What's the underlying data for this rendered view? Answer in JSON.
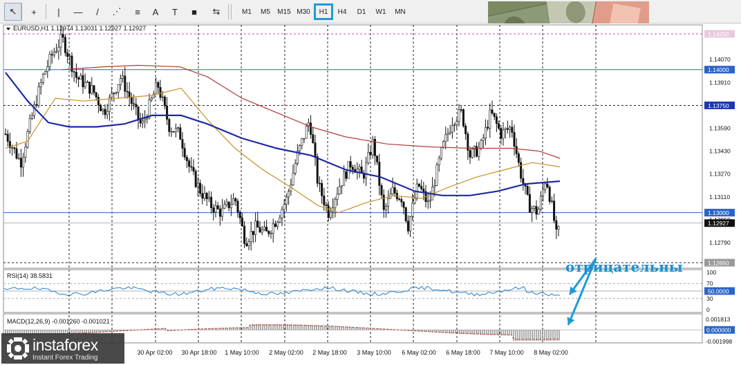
{
  "toolbar": {
    "tools": [
      {
        "name": "cursor-icon",
        "glyph": "↖"
      },
      {
        "name": "crosshair-icon",
        "glyph": "+"
      },
      {
        "name": "vertical-line-icon",
        "glyph": "|"
      },
      {
        "name": "horizontal-line-icon",
        "glyph": "—"
      },
      {
        "name": "trendline-icon",
        "glyph": "/"
      },
      {
        "name": "andrews-pitchfork-icon",
        "glyph": "⋰"
      },
      {
        "name": "fibonacci-icon",
        "glyph": "≡"
      },
      {
        "name": "text-icon",
        "glyph": "A"
      },
      {
        "name": "text-label-icon",
        "glyph": "T"
      },
      {
        "name": "rectangle-icon",
        "glyph": "■"
      },
      {
        "name": "arrows-icon",
        "glyph": "⇆"
      }
    ],
    "timeframes": [
      "M1",
      "M5",
      "M15",
      "M30",
      "H1",
      "H4",
      "D1",
      "W1",
      "MN"
    ],
    "selected_timeframe": "H1"
  },
  "chart_header": "EURUSD,H1  1.12974 1.13031 1.12927 1.12927",
  "price_axis": {
    "ticks": [
      "1.14250",
      "1.14070",
      "1.13910",
      "1.13750",
      "1.13590",
      "1.13430",
      "1.13270",
      "1.13110",
      "1.12950",
      "1.12790",
      "1.12650"
    ],
    "level_labels": [
      {
        "text": "1.14250",
        "style": "dashed-pink"
      },
      {
        "text": "1.14000",
        "style": "blue"
      },
      {
        "text": "1.13750",
        "style": "dark-blue"
      },
      {
        "text": "1.13000",
        "style": "blue"
      },
      {
        "text": "1.12927",
        "style": "black"
      },
      {
        "text": "1.12650",
        "style": "gray"
      }
    ]
  },
  "rsi": {
    "label": "RSI(14) 38.5831",
    "ticks": [
      "100",
      "70",
      "50.0000",
      "30",
      "0"
    ]
  },
  "macd": {
    "label": "MACD(12,26,9) -0.001260 -0.001021",
    "ticks": [
      "0.001813",
      "0.000000",
      "-0.001998"
    ]
  },
  "time_axis": [
    "30 Apr 02:00",
    "30 Apr 18:00",
    "1 May 10:00",
    "2 May 02:00",
    "2 May 18:00",
    "3 May 10:00",
    "6 May 02:00",
    "6 May 18:00",
    "7 May 10:00",
    "8 May 02:00"
  ],
  "annotation": "отрицательны",
  "logo": {
    "name": "instaforex",
    "tagline": "Instant Forex Trading"
  },
  "colors": {
    "accent": "#1e9ad8",
    "ma_fast": "#c8902a",
    "ma_slow": "#1c2aa0",
    "ma_long": "#b03a3a",
    "indicator": "#1e7dcc",
    "macd_signal": "#c0392b",
    "label_blue": "#2a64c8"
  }
}
